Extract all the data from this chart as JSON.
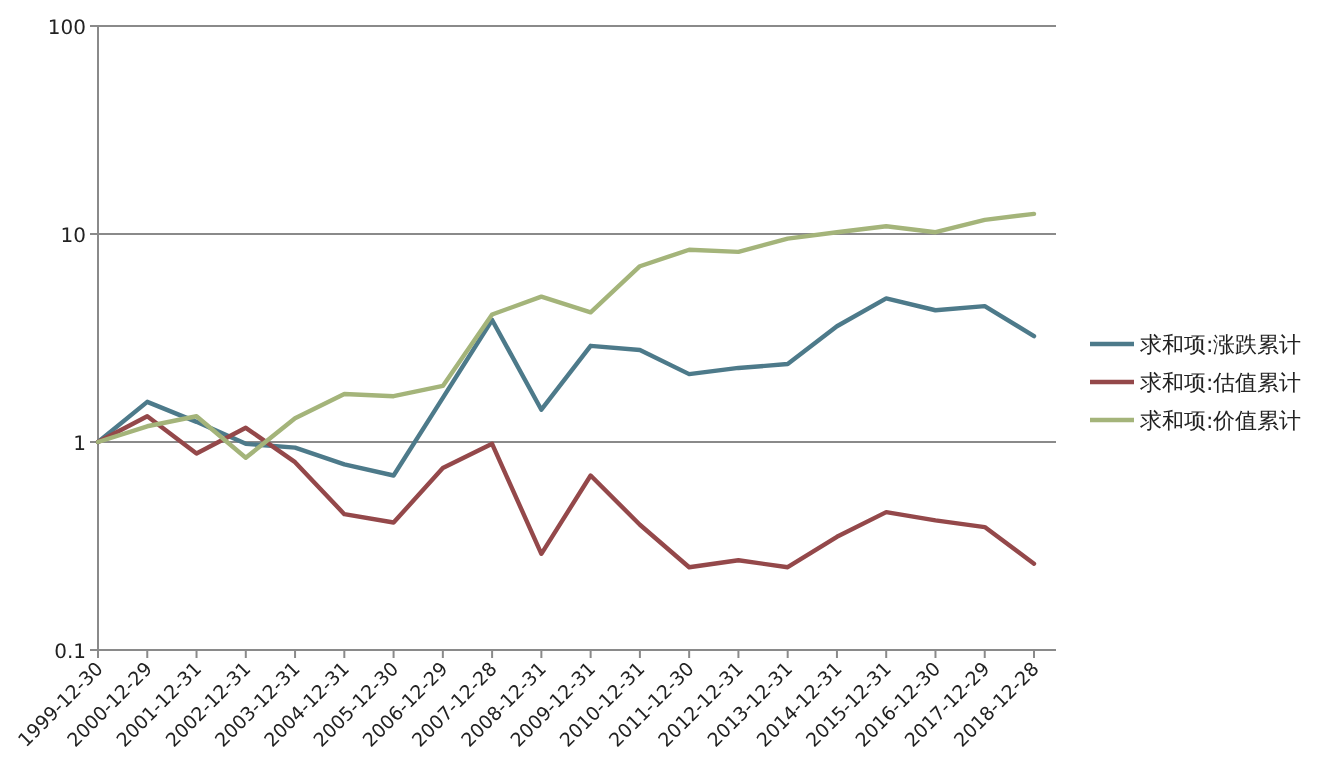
{
  "chart_data": {
    "type": "line",
    "log": "y",
    "ylim": [
      0.1,
      100
    ],
    "yticks": [
      0.1,
      1,
      10,
      100
    ],
    "grid": "y",
    "legend": "right",
    "line_style": "solid",
    "marker": "none",
    "categories": [
      "1999-12-30",
      "2000-12-29",
      "2001-12-31",
      "2002-12-31",
      "2003-12-31",
      "2004-12-31",
      "2005-12-30",
      "2006-12-29",
      "2007-12-28",
      "2008-12-31",
      "2009-12-31",
      "2010-12-31",
      "2011-12-30",
      "2012-12-31",
      "2013-12-31",
      "2014-12-31",
      "2015-12-31",
      "2016-12-30",
      "2017-12-29",
      "2018-12-28"
    ],
    "series": [
      {
        "name": "求和项:涨跌累计",
        "color": "#4d7a8a",
        "values": [
          1,
          1.56,
          1.25,
          0.98,
          0.94,
          0.78,
          0.69,
          1.63,
          3.86,
          1.43,
          2.9,
          2.77,
          2.12,
          2.27,
          2.37,
          3.6,
          4.9,
          4.3,
          4.5,
          3.23
        ]
      },
      {
        "name": "求和项:估值累计",
        "color": "#94484a",
        "values": [
          1,
          1.33,
          0.88,
          1.17,
          0.8,
          0.45,
          0.41,
          0.75,
          0.98,
          0.29,
          0.69,
          0.4,
          0.25,
          0.27,
          0.25,
          0.35,
          0.46,
          0.42,
          0.39,
          0.26
        ]
      },
      {
        "name": "求和项:价值累计",
        "color": "#a4b47a",
        "values": [
          1,
          1.19,
          1.33,
          0.84,
          1.3,
          1.7,
          1.66,
          1.86,
          4.1,
          5.0,
          4.2,
          7.0,
          8.4,
          8.2,
          9.5,
          10.2,
          10.9,
          10.2,
          11.7,
          12.5
        ]
      }
    ]
  }
}
